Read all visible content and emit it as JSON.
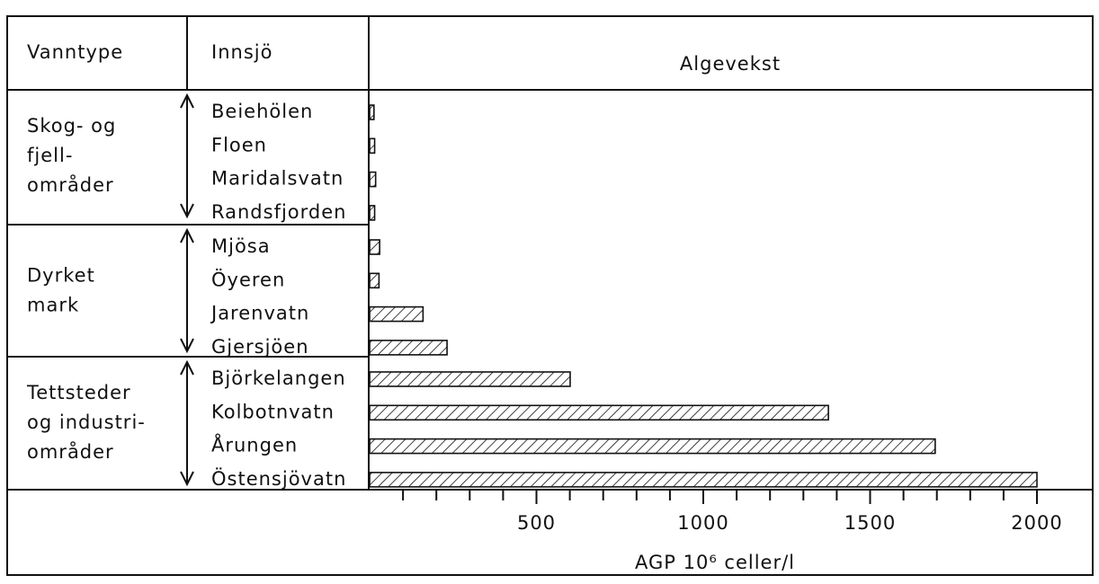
{
  "chart_data": {
    "type": "bar",
    "headers": [
      "Vanntype",
      "Innsjö",
      "Algevekst"
    ],
    "groups": [
      {
        "lines": [
          "Skog- og",
          "fjell-",
          "områder"
        ],
        "categories": [
          "Beiehölen",
          "Floen",
          "Maridalsvatn",
          "Randsfjorden"
        ],
        "values": [
          13,
          15,
          18,
          15
        ]
      },
      {
        "lines": [
          "Dyrket",
          "mark"
        ],
        "categories": [
          "Mjösa",
          "Öyeren",
          "Jarenvatn",
          "Gjersjöen"
        ],
        "values": [
          30,
          28,
          160,
          232
        ]
      },
      {
        "lines": [
          "Tettsteder",
          "og industri-",
          "områder"
        ],
        "categories": [
          "Björkelangen",
          "Kolbotnvatn",
          "Årungen",
          "Östensjövatn"
        ],
        "values": [
          601,
          1375,
          1695,
          2000
        ]
      }
    ],
    "xlabel": "AGP  10⁶ celler/l",
    "xlim": [
      0,
      2000
    ],
    "xticks": [
      500,
      1000,
      1500,
      2000
    ],
    "xminor": [
      100,
      200,
      300,
      400,
      600,
      700,
      800,
      900,
      1100,
      1200,
      1300,
      1400,
      1600,
      1700,
      1800,
      1900
    ],
    "hatch": true,
    "color": "#111111"
  }
}
